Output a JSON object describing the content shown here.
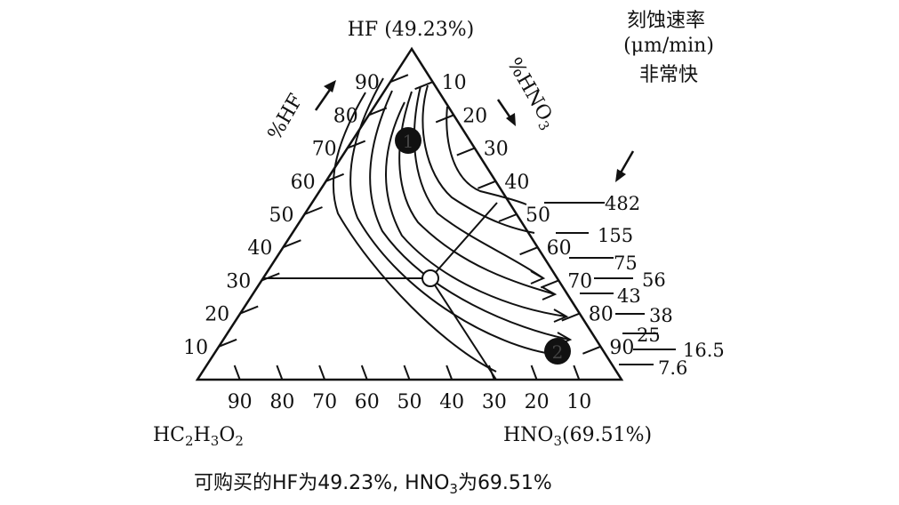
{
  "labels": {
    "apex_hf": "HF (49.23%)",
    "pct_hf_axis": "%HF",
    "pct_hno3_axis_main": "%HNO",
    "pct_hno3_axis_sub": "3",
    "vertex_acetic_main": "HC",
    "vertex_acetic_sub1": "2",
    "vertex_acetic_mid": "H",
    "vertex_acetic_sub2": "3",
    "vertex_acetic_mid2": "O",
    "vertex_acetic_sub3": "2",
    "vertex_hno3_main": "HNO",
    "vertex_hno3_sub": "3",
    "vertex_hno3_tail": "(69.51%)",
    "etch_rate_line1": "刻蚀速率",
    "etch_rate_line2": "(μm/min)",
    "etch_rate_line3": "非常快",
    "caption_a": "可购买的HF为49.23%, HNO",
    "caption_sub": "3",
    "caption_b": "为69.51%",
    "marker_1": "1",
    "marker_2": "2"
  },
  "axes": {
    "hf_ticks": [
      "10",
      "20",
      "30",
      "40",
      "50",
      "60",
      "70",
      "80",
      "90"
    ],
    "hno3_ticks": [
      "10",
      "20",
      "30",
      "40",
      "50",
      "60",
      "70",
      "80",
      "90"
    ],
    "acetic_ticks": [
      "90",
      "80",
      "70",
      "60",
      "50",
      "40",
      "30",
      "20",
      "10"
    ]
  },
  "etch_rates": [
    "482",
    "155",
    "75",
    "56",
    "43",
    "38",
    "25",
    "16.5",
    "7.6"
  ],
  "colors": {
    "ink": "#111111",
    "background": "#ffffff"
  }
}
